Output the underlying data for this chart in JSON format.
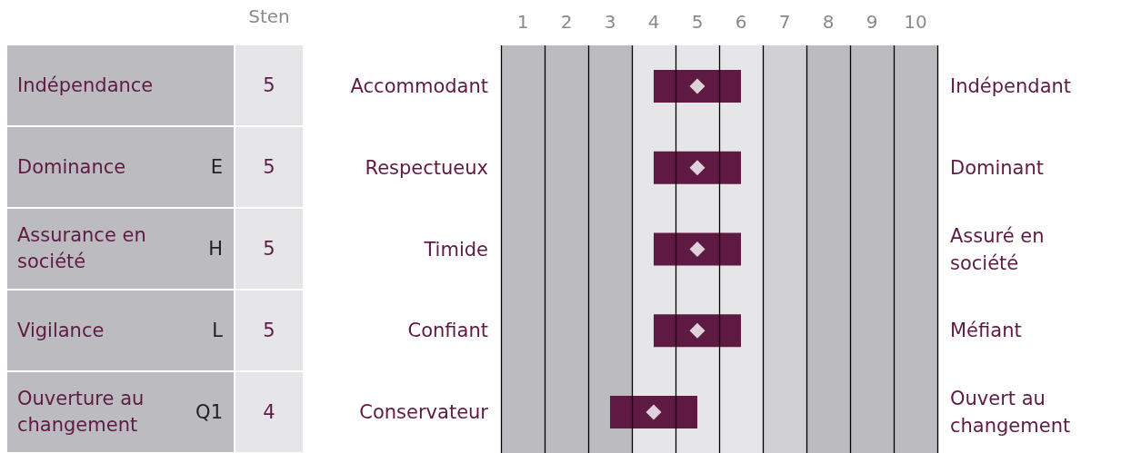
{
  "chart_data": {
    "type": "bar",
    "orientation": "horizontal",
    "categories": [
      "Accommodant",
      "Respectueux",
      "Timide",
      "Confiant",
      "Conservateur"
    ],
    "y2_categories": [
      "Indépendant",
      "Dominant",
      "Assuré en société",
      "Méfiant",
      "Ouvert au changement"
    ],
    "series": [
      {
        "color": "#5e1a43",
        "base": [
          4,
          4,
          4,
          4,
          3
        ],
        "values": [
          2,
          2,
          2,
          2,
          2
        ]
      },
      {
        "type": "scatter",
        "color": "#ffffff",
        "values": [
          5,
          5,
          5,
          5,
          4
        ]
      }
    ],
    "marker": "diamond",
    "xlim": [
      0.5,
      10.5
    ],
    "xticks": [
      {
        "value": 0.5,
        "label": null
      },
      1,
      {
        "value": 1.5,
        "label": null
      },
      2,
      {
        "value": 2.5,
        "label": null
      },
      3,
      {
        "value": 3.5,
        "label": null
      },
      4,
      {
        "value": 4.5,
        "label": null
      },
      5,
      {
        "value": 5.5,
        "label": null
      },
      6,
      {
        "value": 6.5,
        "label": null
      },
      7,
      {
        "value": 7.5,
        "label": null
      },
      8,
      {
        "value": 8.5,
        "label": null
      },
      9,
      {
        "value": 9.5,
        "label": null
      },
      10,
      {
        "value": 10.5,
        "label": null
      }
    ],
    "grid": "x",
    "bands": [
      {
        "axis": "x",
        "from": 0.5,
        "to": 3.5,
        "color": "#bcbcc0"
      },
      {
        "axis": "x",
        "from": 3.5,
        "to": 6.5,
        "color": "#e6e6e9"
      },
      {
        "axis": "x",
        "from": 6.5,
        "to": 7.5,
        "color": "#d1d1d5"
      },
      {
        "axis": "x",
        "from": 7.5,
        "to": 10.5,
        "color": "#bcbcc0"
      }
    ],
    "annotations": [
      "Sten",
      "Indépendance",
      "Dominance",
      "Assurance en société",
      "Vigilance",
      "Ouverture au changement",
      "5",
      "5",
      "5",
      "5",
      "4",
      "E",
      "H",
      "L",
      "Q1"
    ]
  }
}
